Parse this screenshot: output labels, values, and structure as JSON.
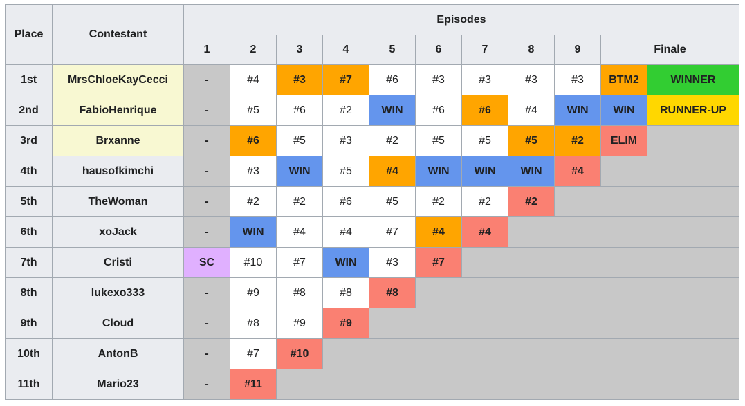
{
  "header": {
    "place": "Place",
    "contestant": "Contestant",
    "episodes": "Episodes",
    "columns": [
      "1",
      "2",
      "3",
      "4",
      "5",
      "6",
      "7",
      "8",
      "9",
      "Finale"
    ]
  },
  "palette": {
    "empty": "#c8c8c8",
    "plain": "#ffffff",
    "header": "#eaecf0"
  },
  "rows": [
    {
      "place": "1st",
      "contestant": "MrsChloeKayCecci",
      "contestant_color": "#f8f8d2",
      "cells": [
        {
          "text": "-",
          "color": "#c8c8c8"
        },
        {
          "text": "#4",
          "color": "#ffffff"
        },
        {
          "text": "#3",
          "color": "#ffa500"
        },
        {
          "text": "#7",
          "color": "#ffa500"
        },
        {
          "text": "#6",
          "color": "#ffffff"
        },
        {
          "text": "#3",
          "color": "#ffffff"
        },
        {
          "text": "#3",
          "color": "#ffffff"
        },
        {
          "text": "#3",
          "color": "#ffffff"
        },
        {
          "text": "#3",
          "color": "#ffffff"
        },
        {
          "text": "BTM2",
          "color": "#ffa500"
        },
        {
          "text": "WINNER",
          "color": "#32cd32"
        }
      ]
    },
    {
      "place": "2nd",
      "contestant": "FabioHenrique",
      "contestant_color": "#f8f8d2",
      "cells": [
        {
          "text": "-",
          "color": "#c8c8c8"
        },
        {
          "text": "#5",
          "color": "#ffffff"
        },
        {
          "text": "#6",
          "color": "#ffffff"
        },
        {
          "text": "#2",
          "color": "#ffffff"
        },
        {
          "text": "WIN",
          "color": "#6495ed"
        },
        {
          "text": "#6",
          "color": "#ffffff"
        },
        {
          "text": "#6",
          "color": "#ffa500"
        },
        {
          "text": "#4",
          "color": "#ffffff"
        },
        {
          "text": "WIN",
          "color": "#6495ed"
        },
        {
          "text": "WIN",
          "color": "#6495ed"
        },
        {
          "text": "RUNNER-UP",
          "color": "#ffd700"
        }
      ]
    },
    {
      "place": "3rd",
      "contestant": "Brxanne",
      "contestant_color": "#f8f8d2",
      "cells": [
        {
          "text": "-",
          "color": "#c8c8c8"
        },
        {
          "text": "#6",
          "color": "#ffa500"
        },
        {
          "text": "#5",
          "color": "#ffffff"
        },
        {
          "text": "#3",
          "color": "#ffffff"
        },
        {
          "text": "#2",
          "color": "#ffffff"
        },
        {
          "text": "#5",
          "color": "#ffffff"
        },
        {
          "text": "#5",
          "color": "#ffffff"
        },
        {
          "text": "#5",
          "color": "#ffa500"
        },
        {
          "text": "#2",
          "color": "#ffa500"
        },
        {
          "text": "ELIM",
          "color": "#fa8072"
        }
      ]
    },
    {
      "place": "4th",
      "contestant": "hausofkimchi",
      "contestant_color": "#eaecf0",
      "cells": [
        {
          "text": "-",
          "color": "#c8c8c8"
        },
        {
          "text": "#3",
          "color": "#ffffff"
        },
        {
          "text": "WIN",
          "color": "#6495ed"
        },
        {
          "text": "#5",
          "color": "#ffffff"
        },
        {
          "text": "#4",
          "color": "#ffa500"
        },
        {
          "text": "WIN",
          "color": "#6495ed"
        },
        {
          "text": "WIN",
          "color": "#6495ed"
        },
        {
          "text": "WIN",
          "color": "#6495ed"
        },
        {
          "text": "#4",
          "color": "#fa8072"
        }
      ]
    },
    {
      "place": "5th",
      "contestant": "TheWoman",
      "contestant_color": "#eaecf0",
      "cells": [
        {
          "text": "-",
          "color": "#c8c8c8"
        },
        {
          "text": "#2",
          "color": "#ffffff"
        },
        {
          "text": "#2",
          "color": "#ffffff"
        },
        {
          "text": "#6",
          "color": "#ffffff"
        },
        {
          "text": "#5",
          "color": "#ffffff"
        },
        {
          "text": "#2",
          "color": "#ffffff"
        },
        {
          "text": "#2",
          "color": "#ffffff"
        },
        {
          "text": "#2",
          "color": "#fa8072"
        }
      ]
    },
    {
      "place": "6th",
      "contestant": "xoJack",
      "contestant_color": "#eaecf0",
      "cells": [
        {
          "text": "-",
          "color": "#c8c8c8"
        },
        {
          "text": "WIN",
          "color": "#6495ed"
        },
        {
          "text": "#4",
          "color": "#ffffff"
        },
        {
          "text": "#4",
          "color": "#ffffff"
        },
        {
          "text": "#7",
          "color": "#ffffff"
        },
        {
          "text": "#4",
          "color": "#ffa500"
        },
        {
          "text": "#4",
          "color": "#fa8072"
        }
      ]
    },
    {
      "place": "7th",
      "contestant": "Cristi",
      "contestant_color": "#eaecf0",
      "cells": [
        {
          "text": "SC",
          "color": "#e0b0ff"
        },
        {
          "text": "#10",
          "color": "#ffffff"
        },
        {
          "text": "#7",
          "color": "#ffffff"
        },
        {
          "text": "WIN",
          "color": "#6495ed"
        },
        {
          "text": "#3",
          "color": "#ffffff"
        },
        {
          "text": "#7",
          "color": "#fa8072"
        }
      ]
    },
    {
      "place": "8th",
      "contestant": "lukexo333",
      "contestant_color": "#eaecf0",
      "cells": [
        {
          "text": "-",
          "color": "#c8c8c8"
        },
        {
          "text": "#9",
          "color": "#ffffff"
        },
        {
          "text": "#8",
          "color": "#ffffff"
        },
        {
          "text": "#8",
          "color": "#ffffff"
        },
        {
          "text": "#8",
          "color": "#fa8072"
        }
      ]
    },
    {
      "place": "9th",
      "contestant": "Cloud",
      "contestant_color": "#eaecf0",
      "cells": [
        {
          "text": "-",
          "color": "#c8c8c8"
        },
        {
          "text": "#8",
          "color": "#ffffff"
        },
        {
          "text": "#9",
          "color": "#ffffff"
        },
        {
          "text": "#9",
          "color": "#fa8072"
        }
      ]
    },
    {
      "place": "10th",
      "contestant": "AntonB",
      "contestant_color": "#eaecf0",
      "cells": [
        {
          "text": "-",
          "color": "#c8c8c8"
        },
        {
          "text": "#7",
          "color": "#ffffff"
        },
        {
          "text": "#10",
          "color": "#fa8072"
        }
      ]
    },
    {
      "place": "11th",
      "contestant": "Mario23",
      "contestant_color": "#eaecf0",
      "cells": [
        {
          "text": "-",
          "color": "#c8c8c8"
        },
        {
          "text": "#11",
          "color": "#fa8072"
        }
      ]
    }
  ]
}
